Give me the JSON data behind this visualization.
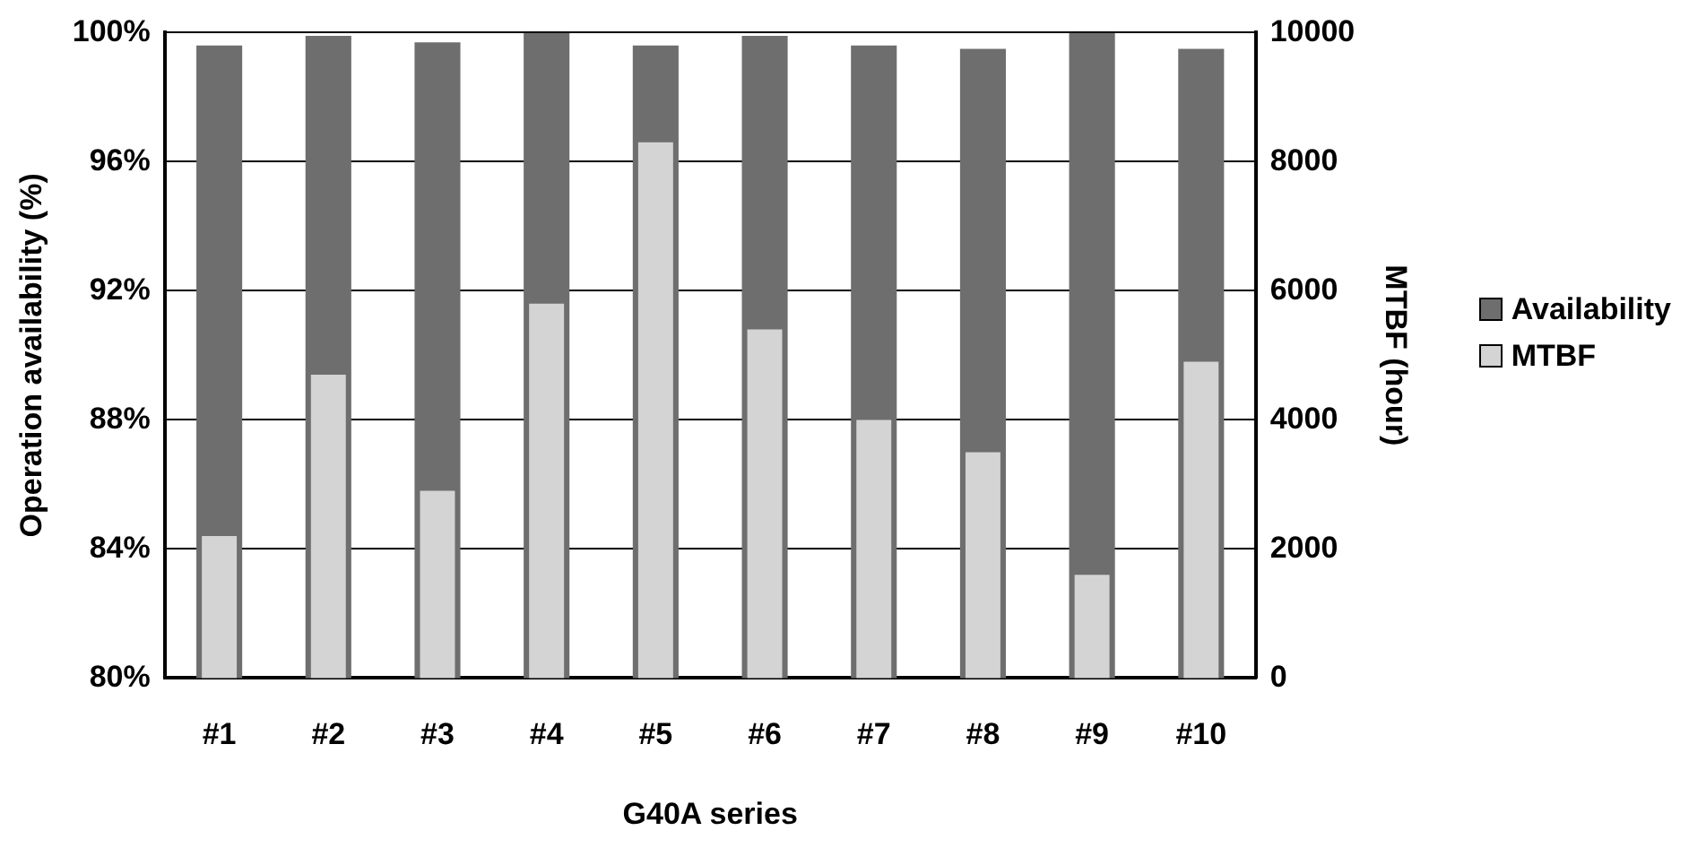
{
  "chart_data": {
    "type": "bar",
    "xlabel": "G40A series",
    "ylabel": "Operation availability (%)",
    "y2label": "MTBF (hour)",
    "categories": [
      "#1",
      "#2",
      "#3",
      "#4",
      "#5",
      "#6",
      "#7",
      "#8",
      "#9",
      "#10"
    ],
    "series": [
      {
        "name": "Availability",
        "color": "#6e6e6e",
        "values": [
          99.6,
          99.9,
          99.7,
          100,
          99.6,
          99.9,
          99.6,
          99.5,
          100,
          99.5
        ]
      },
      {
        "name": "MTBF",
        "color": "#d4d4d4",
        "axis": "y2",
        "values": [
          2200,
          4700,
          2900,
          5800,
          8300,
          5400,
          4000,
          3500,
          1600,
          4900
        ]
      }
    ],
    "ylim": [
      80,
      100
    ],
    "yticks": [
      {
        "value": 80,
        "label": "80%"
      },
      {
        "value": 84,
        "label": "84%"
      },
      {
        "value": 88,
        "label": "88%"
      },
      {
        "value": 92,
        "label": "92%"
      },
      {
        "value": 96,
        "label": "96%"
      },
      {
        "value": 100,
        "label": "100%"
      }
    ],
    "y2lim": [
      0,
      10000
    ],
    "y2ticks": [
      0,
      2000,
      4000,
      6000,
      8000,
      10000
    ],
    "grid": "y",
    "legend": "right"
  }
}
